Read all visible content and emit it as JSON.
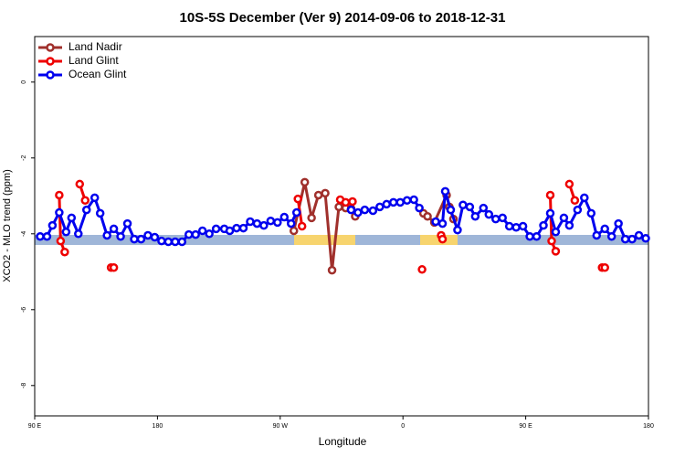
{
  "chart_data": {
    "type": "line",
    "title": "10S-5S December (Ver 9)   2014-09-06 to 2018-12-31",
    "x_label": "Longitude",
    "y_label": "XCO2 - MLO trend (ppm)",
    "xlim": [
      90,
      540
    ],
    "ylim": [
      -8.8,
      1.2
    ],
    "xticks": [
      {
        "value": 90,
        "label": "90 E"
      },
      {
        "value": 180,
        "label": "180"
      },
      {
        "value": 270,
        "label": "90 W"
      },
      {
        "value": 360,
        "label": "0"
      },
      {
        "value": 450,
        "label": "90 E"
      },
      {
        "value": 540,
        "label": "180"
      }
    ],
    "yticks": [
      -8,
      -6,
      -4,
      -2,
      0
    ],
    "legend": "top-left",
    "series": [
      {
        "name": "Land Nadir",
        "color": "#a0302c",
        "x": [
          280,
          288,
          293,
          298,
          303,
          308,
          313,
          318,
          322,
          325,
          350,
          375,
          378,
          383,
          392,
          394,
          397
        ],
        "values": [
          -3.92,
          -2.64,
          -3.58,
          -2.98,
          -2.93,
          -4.96,
          -3.29,
          -3.32,
          -3.34,
          -3.54,
          null,
          -3.46,
          -3.54,
          -3.7,
          -2.98,
          -3.29,
          -3.61
        ]
      },
      {
        "name": "Land Glint",
        "color": "#ee0000",
        "x": [
          108,
          109,
          112,
          114,
          123,
          127,
          130,
          146,
          148,
          200,
          283,
          286,
          300,
          314,
          318,
          323,
          350,
          374,
          380,
          388,
          389,
          450,
          468,
          469,
          472,
          475,
          482,
          486,
          490,
          506,
          508
        ],
        "values": [
          -2.98,
          -4.19,
          -4.48,
          null,
          -2.69,
          -3.12,
          null,
          -4.89,
          -4.89,
          null,
          -3.08,
          -3.8,
          null,
          -3.1,
          -3.17,
          -3.15,
          null,
          -4.94,
          null,
          -4.04,
          -4.14,
          null,
          -2.98,
          -4.19,
          -4.46,
          null,
          -2.69,
          -3.12,
          null,
          -4.89,
          -4.89
        ]
      },
      {
        "name": "Ocean Glint",
        "color": "#0000ee",
        "x": [
          94,
          99,
          103,
          108,
          113,
          117,
          122,
          128,
          134,
          138,
          143,
          148,
          153,
          158,
          163,
          168,
          173,
          178,
          183,
          188,
          193,
          198,
          203,
          208,
          213,
          218,
          223,
          229,
          233,
          238,
          243,
          248,
          253,
          258,
          263,
          268,
          273,
          278,
          282,
          300,
          322,
          327,
          332,
          338,
          343,
          348,
          353,
          358,
          363,
          368,
          372,
          375,
          384,
          389,
          391,
          395,
          400,
          404,
          409,
          413,
          419,
          423,
          428,
          433,
          438,
          443,
          448,
          453,
          458,
          463,
          468,
          472,
          478,
          482,
          488,
          493,
          498,
          502,
          508,
          513,
          518,
          523,
          528,
          533,
          538
        ],
        "values": [
          -4.07,
          -4.07,
          -3.78,
          -3.44,
          -3.95,
          -3.58,
          -4.0,
          -3.37,
          -3.05,
          -3.46,
          -4.04,
          -3.87,
          -4.07,
          -3.73,
          -4.14,
          -4.14,
          -4.04,
          -4.09,
          -4.19,
          -4.21,
          -4.21,
          -4.21,
          -4.02,
          -4.02,
          -3.92,
          -4.0,
          -3.87,
          -3.87,
          -3.92,
          -3.85,
          -3.85,
          -3.68,
          -3.73,
          -3.78,
          -3.66,
          -3.7,
          -3.56,
          -3.73,
          -3.44,
          null,
          -3.37,
          -3.44,
          -3.37,
          -3.39,
          -3.29,
          -3.22,
          -3.17,
          -3.17,
          -3.12,
          -3.1,
          -3.32,
          null,
          -3.68,
          -3.73,
          -2.88,
          -3.37,
          -3.9,
          -3.24,
          -3.29,
          -3.54,
          -3.32,
          -3.49,
          -3.61,
          -3.58,
          -3.8,
          -3.83,
          -3.8,
          -4.07,
          -4.07,
          -3.78,
          -3.46,
          -3.95,
          -3.58,
          -3.78,
          -3.37,
          -3.05,
          -3.46,
          -4.04,
          -3.87,
          -4.07,
          -3.73,
          -4.14,
          -4.14,
          -4.04,
          -4.12
        ]
      }
    ]
  }
}
